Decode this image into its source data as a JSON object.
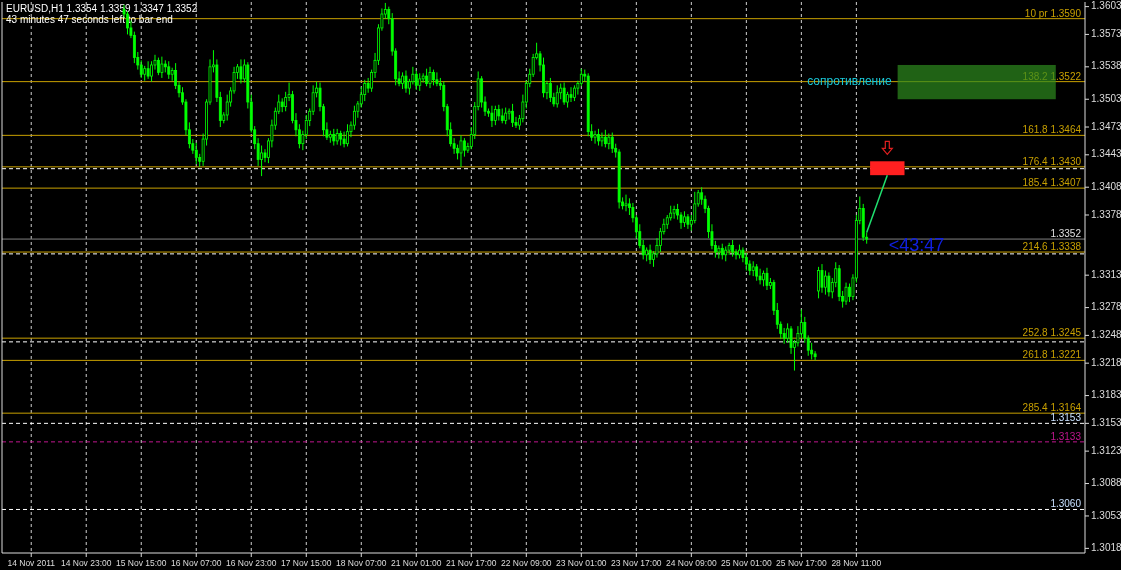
{
  "chart_data": {
    "type": "candlestick",
    "title": "EURUSD,H1  1.3354 1.3359 1.3347 1.3352",
    "subtitle": "43 minutes 47 seconds left to bar end",
    "color": "#00ff00",
    "categories": [
      null,
      null,
      null,
      null,
      null,
      null,
      null,
      null,
      "14 Nov 2011",
      null,
      null,
      null,
      null,
      null,
      null,
      null,
      null,
      null,
      null,
      null,
      null,
      null,
      null,
      null,
      "14 Nov 23:00",
      null,
      null,
      null,
      null,
      null,
      null,
      null,
      null,
      null,
      null,
      null,
      null,
      null,
      null,
      null,
      "15 Nov 15:00",
      null,
      null,
      null,
      null,
      null,
      null,
      null,
      null,
      null,
      null,
      null,
      null,
      null,
      null,
      null,
      "16 Nov 07:00",
      null,
      null,
      null,
      null,
      null,
      null,
      null,
      null,
      null,
      null,
      null,
      null,
      null,
      null,
      null,
      "16 Nov 23:00",
      null,
      null,
      null,
      null,
      null,
      null,
      null,
      null,
      null,
      null,
      null,
      null,
      null,
      null,
      null,
      "17 Nov 15:00",
      null,
      null,
      null,
      null,
      null,
      null,
      null,
      null,
      null,
      null,
      null,
      null,
      null,
      null,
      null,
      "18 Nov 07:00",
      null,
      null,
      null,
      null,
      null,
      null,
      null,
      null,
      null,
      null,
      null,
      null,
      null,
      null,
      null,
      "21 Nov 01:00",
      null,
      null,
      null,
      null,
      null,
      null,
      null,
      null,
      null,
      null,
      null,
      null,
      null,
      null,
      null,
      "21 Nov 17:00",
      null,
      null,
      null,
      null,
      null,
      null,
      null,
      null,
      null,
      null,
      null,
      null,
      null,
      null,
      null,
      "22 Nov 09:00",
      null,
      null,
      null,
      null,
      null,
      null,
      null,
      null,
      null,
      null,
      null,
      null,
      null,
      null,
      null,
      "23 Nov 01:00",
      null,
      null,
      null,
      null,
      null,
      null,
      null,
      null,
      null,
      null,
      null,
      null,
      null,
      null,
      null,
      "23 Nov 17:00",
      null,
      null,
      null,
      null,
      null,
      null,
      null,
      null,
      null,
      null,
      null,
      null,
      null,
      null,
      null,
      "24 Nov 09:00",
      null,
      null,
      null,
      null,
      null,
      null,
      null,
      null,
      null,
      null,
      null,
      null,
      null,
      null,
      null,
      "25 Nov 01:00",
      null,
      null,
      null,
      null,
      null,
      null,
      null,
      null,
      null,
      null,
      null,
      null,
      null,
      null,
      null,
      "25 Nov 17:00",
      null,
      null,
      null,
      null,
      null,
      null,
      null,
      null,
      null,
      null,
      null,
      null,
      null,
      null,
      null,
      "28 Nov 11:00",
      null,
      null,
      null,
      null,
      null,
      null,
      null,
      null,
      null,
      null,
      null,
      null,
      null,
      null,
      null,
      null,
      null,
      null,
      null,
      null,
      null,
      null,
      null,
      null,
      null,
      null,
      null,
      null,
      null,
      null,
      null,
      null,
      null,
      null,
      null,
      null,
      null,
      null,
      null,
      null,
      null,
      null,
      null,
      null,
      null,
      null,
      null,
      null,
      null,
      null,
      null,
      null,
      null,
      null,
      null,
      null,
      null,
      null,
      null,
      null,
      null,
      null,
      null,
      null,
      null,
      null
    ],
    "ohlc": [
      null,
      null,
      null,
      null,
      null,
      null,
      null,
      null,
      null,
      null,
      null,
      null,
      null,
      null,
      null,
      null,
      null,
      null,
      null,
      null,
      null,
      null,
      null,
      null,
      null,
      null,
      null,
      null,
      null,
      null,
      null,
      null,
      null,
      null,
      null,
      [
        1.36,
        1.3605,
        1.3591,
        1.3595
      ],
      [
        1.3595,
        1.3598,
        1.3573,
        1.358
      ],
      [
        1.358,
        1.3588,
        1.3569,
        1.3572
      ],
      [
        1.3572,
        1.3576,
        1.3542,
        1.3548
      ],
      [
        1.3548,
        1.3554,
        1.3535,
        1.354
      ],
      [
        1.354,
        1.3545,
        1.3526,
        1.353
      ],
      [
        1.353,
        1.3539,
        1.3523,
        1.3536
      ],
      [
        1.3536,
        1.3544,
        1.3525,
        1.3528
      ],
      [
        1.3528,
        1.3544,
        1.3522,
        1.354
      ],
      [
        1.354,
        1.3551,
        1.3535,
        1.3545
      ],
      [
        1.3545,
        1.3548,
        1.3529,
        1.3532
      ],
      [
        1.3532,
        1.3549,
        1.3526,
        1.3541
      ],
      [
        1.3541,
        1.3545,
        1.3532,
        1.3538
      ],
      [
        1.3538,
        1.3544,
        1.3525,
        1.353
      ],
      [
        1.353,
        1.3537,
        1.3523,
        1.3534
      ],
      [
        1.3534,
        1.3542,
        1.3514,
        1.3518
      ],
      [
        1.3518,
        1.3522,
        1.3505,
        1.351
      ],
      [
        1.351,
        1.3516,
        1.3497,
        1.35
      ],
      [
        1.35,
        1.3503,
        1.3464,
        1.347
      ],
      [
        1.347,
        1.3478,
        1.345,
        1.3455
      ],
      [
        1.3455,
        1.346,
        1.3444,
        1.3448
      ],
      [
        1.3448,
        1.3456,
        1.3433,
        1.344
      ],
      [
        1.344,
        1.3444,
        1.343,
        1.3436
      ],
      [
        1.3436,
        1.3466,
        1.3431,
        1.346
      ],
      [
        1.346,
        1.3503,
        1.3453,
        1.35
      ],
      [
        1.35,
        1.3546,
        1.3497,
        1.3538
      ],
      [
        1.3538,
        1.3556,
        1.3532,
        1.354
      ],
      [
        1.354,
        1.3546,
        1.35,
        1.3505
      ],
      [
        1.3505,
        1.3511,
        1.3473,
        1.348
      ],
      [
        1.348,
        1.3489,
        1.3477,
        1.3486
      ],
      [
        1.3486,
        1.3508,
        1.348,
        1.35
      ],
      [
        1.35,
        1.3516,
        1.3495,
        1.3512
      ],
      [
        1.3512,
        1.3538,
        1.3509,
        1.3532
      ],
      [
        1.3532,
        1.3541,
        1.3525,
        1.3538
      ],
      [
        1.3538,
        1.3546,
        1.352,
        1.3525
      ],
      [
        1.3525,
        1.3546,
        1.3521,
        1.354
      ],
      [
        1.354,
        1.3543,
        1.3493,
        1.35
      ],
      [
        1.35,
        1.3508,
        1.3467,
        1.347
      ],
      [
        1.347,
        1.3474,
        1.3449,
        1.3455
      ],
      [
        1.3455,
        1.3461,
        1.3431,
        1.3438
      ],
      [
        1.3438,
        1.3453,
        1.342,
        1.3445
      ],
      [
        1.3445,
        1.3449,
        1.3435,
        1.344
      ],
      [
        1.344,
        1.3461,
        1.3434,
        1.3458
      ],
      [
        1.3458,
        1.3481,
        1.3451,
        1.3475
      ],
      [
        1.3475,
        1.3494,
        1.347,
        1.349
      ],
      [
        1.349,
        1.3508,
        1.3487,
        1.35
      ],
      [
        1.35,
        1.3504,
        1.3489,
        1.3495
      ],
      [
        1.3495,
        1.3511,
        1.349,
        1.3505
      ],
      [
        1.3505,
        1.3521,
        1.3501,
        1.3508
      ],
      [
        1.3508,
        1.3512,
        1.3477,
        1.348
      ],
      [
        1.348,
        1.3488,
        1.3463,
        1.347
      ],
      [
        1.347,
        1.3476,
        1.345,
        1.3455
      ],
      [
        1.3455,
        1.3469,
        1.3448,
        1.3465
      ],
      [
        1.3465,
        1.3486,
        1.346,
        1.348
      ],
      [
        1.348,
        1.3493,
        1.3474,
        1.349
      ],
      [
        1.349,
        1.3518,
        1.3486,
        1.351
      ],
      [
        1.351,
        1.3522,
        1.3505,
        1.3515
      ],
      [
        1.3515,
        1.3521,
        1.349,
        1.3495
      ],
      [
        1.3495,
        1.3498,
        1.3463,
        1.347
      ],
      [
        1.347,
        1.3478,
        1.3459,
        1.3462
      ],
      [
        1.3462,
        1.3469,
        1.3456,
        1.3465
      ],
      [
        1.3465,
        1.3471,
        1.3453,
        1.3458
      ],
      [
        1.3458,
        1.3471,
        1.3454,
        1.3466
      ],
      [
        1.3466,
        1.3469,
        1.3453,
        1.346
      ],
      [
        1.346,
        1.3468,
        1.3451,
        1.3455
      ],
      [
        1.3455,
        1.3476,
        1.3452,
        1.3468
      ],
      [
        1.3468,
        1.3479,
        1.3462,
        1.3475
      ],
      [
        1.3475,
        1.3496,
        1.347,
        1.349
      ],
      [
        1.349,
        1.3501,
        1.3483,
        1.3498
      ],
      [
        1.3498,
        1.3516,
        1.3494,
        1.3508
      ],
      [
        1.3508,
        1.3524,
        1.3501,
        1.352
      ],
      [
        1.352,
        1.3526,
        1.351,
        1.3515
      ],
      [
        1.3515,
        1.3535,
        1.3511,
        1.3532
      ],
      [
        1.3532,
        1.3553,
        1.3526,
        1.3545
      ],
      [
        1.3545,
        1.3584,
        1.354,
        1.358
      ],
      [
        1.358,
        1.3601,
        1.3577,
        1.3595
      ],
      [
        1.3595,
        1.3607,
        1.359,
        1.36
      ],
      [
        1.36,
        1.3603,
        1.3584,
        1.359
      ],
      [
        1.359,
        1.3596,
        1.355,
        1.3555
      ],
      [
        1.3555,
        1.3558,
        1.3518,
        1.3525
      ],
      [
        1.3525,
        1.3533,
        1.3517,
        1.352
      ],
      [
        1.352,
        1.3532,
        1.3514,
        1.3528
      ],
      [
        1.3528,
        1.3534,
        1.351,
        1.3515
      ],
      [
        1.3515,
        1.3525,
        1.3508,
        1.3522
      ],
      [
        1.3522,
        1.3538,
        1.3519,
        1.353
      ],
      [
        1.353,
        1.3534,
        1.3513,
        1.3518
      ],
      [
        1.3518,
        1.3531,
        1.3512,
        1.3525
      ],
      [
        1.3525,
        1.3531,
        1.3521,
        1.3528
      ],
      [
        1.3528,
        1.3536,
        1.3517,
        1.352
      ],
      [
        1.352,
        1.3538,
        1.3515,
        1.3532
      ],
      [
        1.3532,
        1.3535,
        1.3518,
        1.3524
      ],
      [
        1.3524,
        1.3532,
        1.3517,
        1.352
      ],
      [
        1.352,
        1.3526,
        1.3513,
        1.3518
      ],
      [
        1.3518,
        1.3522,
        1.349,
        1.3495
      ],
      [
        1.3495,
        1.3498,
        1.3463,
        1.347
      ],
      [
        1.347,
        1.3478,
        1.3452,
        1.3455
      ],
      [
        1.3455,
        1.3461,
        1.3444,
        1.345
      ],
      [
        1.345,
        1.3454,
        1.3438,
        1.3445
      ],
      [
        1.3445,
        1.3464,
        1.343,
        1.3458
      ],
      [
        1.3458,
        1.3461,
        1.3441,
        1.3448
      ],
      [
        1.3448,
        1.3456,
        1.3445,
        1.3452
      ],
      [
        1.3452,
        1.3473,
        1.3449,
        1.3465
      ],
      [
        1.3465,
        1.35,
        1.346,
        1.3495
      ],
      [
        1.3495,
        1.3533,
        1.3491,
        1.3525
      ],
      [
        1.3525,
        1.3528,
        1.3494,
        1.35
      ],
      [
        1.35,
        1.3506,
        1.3485,
        1.349
      ],
      [
        1.349,
        1.3493,
        1.3484,
        1.3488
      ],
      [
        1.3488,
        1.3496,
        1.3473,
        1.348
      ],
      [
        1.348,
        1.3496,
        1.3475,
        1.3492
      ],
      [
        1.3492,
        1.3497,
        1.348,
        1.3485
      ],
      [
        1.3485,
        1.3493,
        1.3477,
        1.348
      ],
      [
        1.348,
        1.3494,
        1.3476,
        1.3488
      ],
      [
        1.3488,
        1.3493,
        1.3481,
        1.349
      ],
      [
        1.349,
        1.3498,
        1.3473,
        1.3478
      ],
      [
        1.3478,
        1.3484,
        1.3472,
        1.3475
      ],
      [
        1.3475,
        1.3486,
        1.347,
        1.3482
      ],
      [
        1.3482,
        1.3508,
        1.3478,
        1.35
      ],
      [
        1.35,
        1.3523,
        1.3493,
        1.352
      ],
      [
        1.352,
        1.3536,
        1.3516,
        1.353
      ],
      [
        1.353,
        1.3552,
        1.3527,
        1.3548
      ],
      [
        1.3548,
        1.3564,
        1.3546,
        1.3552
      ],
      [
        1.3552,
        1.3555,
        1.3533,
        1.354
      ],
      [
        1.354,
        1.3548,
        1.3505,
        1.351
      ],
      [
        1.351,
        1.3523,
        1.3503,
        1.352
      ],
      [
        1.352,
        1.3526,
        1.35,
        1.3505
      ],
      [
        1.3505,
        1.351,
        1.3495,
        1.3498
      ],
      [
        1.3498,
        1.3518,
        1.3494,
        1.351
      ],
      [
        1.351,
        1.352,
        1.3503,
        1.3515
      ],
      [
        1.3515,
        1.3521,
        1.3497,
        1.35
      ],
      [
        1.35,
        1.3511,
        1.3494,
        1.3508
      ],
      [
        1.3508,
        1.3516,
        1.35,
        1.3505
      ],
      [
        1.3505,
        1.3518,
        1.3501,
        1.3515
      ],
      [
        1.3515,
        1.3523,
        1.3508,
        1.352
      ],
      [
        1.352,
        1.3536,
        1.3517,
        1.353
      ],
      [
        1.353,
        1.3535,
        1.3522,
        1.3528
      ],
      [
        1.3528,
        1.3531,
        1.3463,
        1.3468
      ],
      [
        1.3468,
        1.3476,
        1.3458,
        1.3462
      ],
      [
        1.3462,
        1.3469,
        1.3455,
        1.3465
      ],
      [
        1.3465,
        1.3471,
        1.3453,
        1.3458
      ],
      [
        1.3458,
        1.3467,
        1.3452,
        1.3462
      ],
      [
        1.3462,
        1.347,
        1.3451,
        1.3455
      ],
      [
        1.3455,
        1.3466,
        1.3449,
        1.3462
      ],
      [
        1.3462,
        1.3467,
        1.3445,
        1.345
      ],
      [
        1.345,
        1.3455,
        1.344,
        1.3446
      ],
      [
        1.3446,
        1.3449,
        1.3385,
        1.3392
      ],
      [
        1.3392,
        1.3397,
        1.3384,
        1.3388
      ],
      [
        1.3388,
        1.34,
        1.3382,
        1.339
      ],
      [
        1.339,
        1.3396,
        1.3378,
        1.3386
      ],
      [
        1.3386,
        1.3391,
        1.337,
        1.3375
      ],
      [
        1.3375,
        1.3378,
        1.3353,
        1.336
      ],
      [
        1.336,
        1.3368,
        1.3342,
        1.3345
      ],
      [
        1.3345,
        1.3351,
        1.333,
        1.3335
      ],
      [
        1.3335,
        1.3343,
        1.3328,
        1.334
      ],
      [
        1.334,
        1.3346,
        1.3325,
        1.333
      ],
      [
        1.333,
        1.3339,
        1.3322,
        1.3336
      ],
      [
        1.3336,
        1.3353,
        1.3332,
        1.3345
      ],
      [
        1.3345,
        1.3364,
        1.3338,
        1.336
      ],
      [
        1.336,
        1.3374,
        1.3357,
        1.3368
      ],
      [
        1.3368,
        1.3378,
        1.3363,
        1.3375
      ],
      [
        1.3375,
        1.3388,
        1.3372,
        1.338
      ],
      [
        1.338,
        1.3388,
        1.3374,
        1.3384
      ],
      [
        1.3384,
        1.339,
        1.3373,
        1.3378
      ],
      [
        1.3378,
        1.3381,
        1.3363,
        1.337
      ],
      [
        1.337,
        1.3382,
        1.3365,
        1.3376
      ],
      [
        1.3376,
        1.3379,
        1.3363,
        1.3368
      ],
      [
        1.3368,
        1.3378,
        1.3361,
        1.3372
      ],
      [
        1.3372,
        1.3403,
        1.3369,
        1.339
      ],
      [
        1.339,
        1.3405,
        1.3387,
        1.3402
      ],
      [
        1.3402,
        1.3408,
        1.3389,
        1.3395
      ],
      [
        1.3395,
        1.3399,
        1.338,
        1.3385
      ],
      [
        1.3385,
        1.3388,
        1.3353,
        1.336
      ],
      [
        1.336,
        1.3368,
        1.3341,
        1.3345
      ],
      [
        1.3345,
        1.335,
        1.3332,
        1.3338
      ],
      [
        1.3338,
        1.3345,
        1.3331,
        1.3342
      ],
      [
        1.3342,
        1.3347,
        1.333,
        1.3335
      ],
      [
        1.3335,
        1.3344,
        1.3328,
        1.334
      ],
      [
        1.334,
        1.3348,
        1.3335,
        1.3345
      ],
      [
        1.3345,
        1.3351,
        1.3333,
        1.3338
      ],
      [
        1.3338,
        1.3341,
        1.333,
        1.3335
      ],
      [
        1.3335,
        1.3346,
        1.3331,
        1.334
      ],
      [
        1.334,
        1.3343,
        1.3327,
        1.3332
      ],
      [
        1.3332,
        1.3337,
        1.3318,
        1.3325
      ],
      [
        1.3325,
        1.3329,
        1.3313,
        1.3318
      ],
      [
        1.3318,
        1.3328,
        1.3312,
        1.3322
      ],
      [
        1.3322,
        1.3325,
        1.3307,
        1.3312
      ],
      [
        1.3312,
        1.332,
        1.3303,
        1.3308
      ],
      [
        1.3308,
        1.3318,
        1.3301,
        1.3315
      ],
      [
        1.3315,
        1.3321,
        1.3297,
        1.3302
      ],
      [
        1.3302,
        1.331,
        1.3298,
        1.3305
      ],
      [
        1.3305,
        1.3308,
        1.327,
        1.3275
      ],
      [
        1.3275,
        1.3283,
        1.3255,
        1.326
      ],
      [
        1.326,
        1.3263,
        1.3244,
        1.325
      ],
      [
        1.325,
        1.3256,
        1.3239,
        1.3245
      ],
      [
        1.3245,
        1.3261,
        1.324,
        1.3255
      ],
      [
        1.3255,
        1.3258,
        1.3228,
        1.3235
      ],
      [
        1.3235,
        1.3243,
        1.321,
        1.324
      ],
      [
        1.324,
        1.3258,
        1.3236,
        1.325
      ],
      [
        1.325,
        1.3276,
        1.3245,
        1.3262
      ],
      [
        1.3262,
        1.3268,
        1.324,
        1.3245
      ],
      [
        1.3245,
        1.3248,
        1.3226,
        1.3232
      ],
      [
        1.3232,
        1.324,
        1.3222,
        1.3228
      ],
      [
        1.3228,
        1.3231,
        1.3221,
        1.3225
      ],
      [
        1.3296,
        1.3322,
        1.3288,
        1.3318
      ],
      [
        1.3318,
        1.3325,
        1.3294,
        1.33
      ],
      [
        1.33,
        1.3318,
        1.3292,
        1.3312
      ],
      [
        1.3312,
        1.3316,
        1.329,
        1.3295
      ],
      [
        1.3295,
        1.331,
        1.3288,
        1.3305
      ],
      [
        1.3305,
        1.3327,
        1.33,
        1.332
      ],
      [
        1.332,
        1.3324,
        1.3285,
        1.329
      ],
      [
        1.329,
        1.3296,
        1.3278,
        1.3285
      ],
      [
        1.3285,
        1.3305,
        1.3281,
        1.33
      ],
      [
        1.33,
        1.3304,
        1.3284,
        1.329
      ],
      [
        1.329,
        1.3314,
        1.3286,
        1.331
      ],
      [
        1.331,
        1.3378,
        1.3305,
        1.3372
      ],
      [
        1.3372,
        1.3398,
        1.3368,
        1.3385
      ],
      [
        1.3385,
        1.339,
        1.335,
        1.3354
      ],
      [
        1.3354,
        1.3359,
        1.3347,
        1.3352
      ],
      null,
      null,
      null,
      null,
      null,
      null,
      null,
      null,
      null,
      null,
      null,
      null,
      null,
      null,
      null,
      null,
      null,
      null,
      null,
      null,
      null,
      null,
      null,
      null,
      null,
      null,
      null,
      null,
      null,
      null,
      null,
      null,
      null,
      null,
      null,
      null,
      null,
      null,
      null,
      null,
      null,
      null,
      null,
      null,
      null,
      null,
      null,
      null,
      null,
      null,
      null,
      null,
      null,
      null,
      null,
      null,
      null,
      null,
      null,
      null,
      null,
      null,
      null
    ],
    "ylim": [
      1.3013,
      1.3608
    ],
    "yticks": [
      1.3603,
      1.3573,
      1.3538,
      1.3503,
      1.3473,
      1.3443,
      1.3408,
      1.3378,
      1.3313,
      1.3278,
      1.3248,
      1.3218,
      1.3183,
      1.3153,
      1.3123,
      1.3088,
      1.3053,
      1.3018
    ],
    "grid": "x",
    "ref_lines": [
      {
        "axis": "y",
        "value": 1.359,
        "label": "10 pr  1.3590",
        "color": "#c8a000"
      },
      {
        "axis": "y",
        "value": 1.3522,
        "label": "138.2  1.3522",
        "color": "#c8a000"
      },
      {
        "axis": "y",
        "value": 1.3464,
        "label": "161.8  1.3464",
        "color": "#c8a000"
      },
      {
        "axis": "y",
        "value": 1.343,
        "label": "176.4  1.3430",
        "color": "#c8a000"
      },
      {
        "axis": "y",
        "value": 1.3428,
        "label": null,
        "color": "#ffffff",
        "line_style": "dashed"
      },
      {
        "axis": "y",
        "value": 1.3407,
        "label": "185.4  1.3407",
        "color": "#c8a000"
      },
      {
        "axis": "y",
        "value": 1.3352,
        "label": "1.3352",
        "color": "#808080"
      },
      {
        "axis": "y",
        "value": 1.3338,
        "label": "214.6  1.3338",
        "color": "#c8a000"
      },
      {
        "axis": "y",
        "value": 1.3336,
        "label": null,
        "color": "#ffffff",
        "line_style": "dashed"
      },
      {
        "axis": "y",
        "value": 1.3245,
        "label": "252.8  1.3245",
        "color": "#c8a000"
      },
      {
        "axis": "y",
        "value": 1.3241,
        "label": null,
        "color": "#ffffff",
        "line_style": "dashed"
      },
      {
        "axis": "y",
        "value": 1.3221,
        "label": "261.8  1.3221",
        "color": "#c8a000"
      },
      {
        "axis": "y",
        "value": 1.3164,
        "label": "285.4  1.3164",
        "color": "#c8a000"
      },
      {
        "axis": "y",
        "value": 1.3153,
        "label": "1.3153",
        "color": "#ffffff",
        "line_style": "dashed"
      },
      {
        "axis": "y",
        "value": 1.3133,
        "label": "1.3133",
        "color": "#c0168f",
        "line_style": "dashed"
      },
      {
        "axis": "y",
        "value": 1.306,
        "label": "1.3060",
        "color": "#ffffff",
        "line_style": "dashed"
      }
    ],
    "bands": [
      {
        "axis": "y",
        "from": 1.3503,
        "to": 1.354,
        "label": "сопротивление",
        "color": "#2e8b1e"
      }
    ],
    "annotations": [
      "<43:47"
    ]
  }
}
